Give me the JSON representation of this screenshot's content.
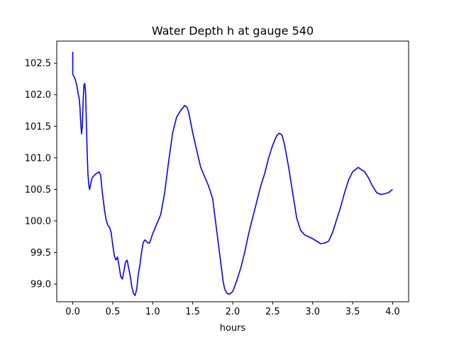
{
  "chart_data": {
    "type": "line",
    "title": "Water Depth h at gauge 540",
    "xlabel": "hours",
    "ylabel": "",
    "xlim": [
      -0.2,
      4.2
    ],
    "ylim": [
      98.72,
      102.85
    ],
    "xticks": [
      0.0,
      0.5,
      1.0,
      1.5,
      2.0,
      2.5,
      3.0,
      3.5,
      4.0
    ],
    "xtick_labels": [
      "0.0",
      "0.5",
      "1.0",
      "1.5",
      "2.0",
      "2.5",
      "3.0",
      "3.5",
      "4.0"
    ],
    "yticks": [
      99.0,
      99.5,
      100.0,
      100.5,
      101.0,
      101.5,
      102.0,
      102.5
    ],
    "ytick_labels": [
      "99.0",
      "99.5",
      "100.0",
      "100.5",
      "101.0",
      "101.5",
      "102.0",
      "102.5"
    ],
    "grid": false,
    "series": [
      {
        "color": "#0000ff",
        "x": [
          0.0,
          0.0,
          0.01,
          0.03,
          0.05,
          0.06,
          0.07,
          0.08,
          0.09,
          0.1,
          0.11,
          0.12,
          0.13,
          0.14,
          0.15,
          0.16,
          0.17,
          0.18,
          0.19,
          0.2,
          0.21,
          0.22,
          0.23,
          0.24,
          0.25,
          0.27,
          0.29,
          0.31,
          0.33,
          0.35,
          0.36,
          0.37,
          0.38,
          0.4,
          0.42,
          0.44,
          0.46,
          0.48,
          0.5,
          0.52,
          0.54,
          0.56,
          0.58,
          0.6,
          0.62,
          0.64,
          0.66,
          0.68,
          0.7,
          0.72,
          0.74,
          0.76,
          0.78,
          0.8,
          0.82,
          0.84,
          0.86,
          0.88,
          0.9,
          0.92,
          0.94,
          0.96,
          0.98,
          1.0,
          1.05,
          1.1,
          1.15,
          1.2,
          1.25,
          1.3,
          1.35,
          1.4,
          1.43,
          1.45,
          1.5,
          1.55,
          1.6,
          1.65,
          1.7,
          1.75,
          1.8,
          1.85,
          1.88,
          1.9,
          1.93,
          1.96,
          2.0,
          2.05,
          2.1,
          2.15,
          2.2,
          2.25,
          2.3,
          2.35,
          2.4,
          2.45,
          2.5,
          2.55,
          2.58,
          2.6,
          2.62,
          2.65,
          2.7,
          2.75,
          2.8,
          2.85,
          2.9,
          2.95,
          3.0,
          3.05,
          3.1,
          3.15,
          3.2,
          3.25,
          3.3,
          3.35,
          3.4,
          3.45,
          3.5,
          3.55,
          3.57,
          3.6,
          3.65,
          3.7,
          3.75,
          3.8,
          3.85,
          3.9,
          3.95,
          4.0
        ],
        "y": [
          102.68,
          102.33,
          102.3,
          102.25,
          102.15,
          102.08,
          102.0,
          101.95,
          101.8,
          101.55,
          101.38,
          101.5,
          101.9,
          102.15,
          102.18,
          102.05,
          101.6,
          101.1,
          100.75,
          100.58,
          100.5,
          100.55,
          100.62,
          100.67,
          100.7,
          100.72,
          100.75,
          100.76,
          100.78,
          100.72,
          100.58,
          100.45,
          100.35,
          100.15,
          100.0,
          99.93,
          99.9,
          99.82,
          99.62,
          99.45,
          99.38,
          99.43,
          99.28,
          99.12,
          99.08,
          99.2,
          99.35,
          99.38,
          99.25,
          99.12,
          98.95,
          98.85,
          98.82,
          98.92,
          99.15,
          99.3,
          99.5,
          99.65,
          99.7,
          99.68,
          99.65,
          99.65,
          99.72,
          99.8,
          99.95,
          100.1,
          100.45,
          100.95,
          101.4,
          101.65,
          101.75,
          101.83,
          101.8,
          101.72,
          101.4,
          101.12,
          100.85,
          100.7,
          100.55,
          100.35,
          99.85,
          99.35,
          99.05,
          98.92,
          98.85,
          98.84,
          98.88,
          99.05,
          99.25,
          99.5,
          99.8,
          100.05,
          100.3,
          100.55,
          100.75,
          101.0,
          101.2,
          101.35,
          101.39,
          101.38,
          101.35,
          101.2,
          100.85,
          100.45,
          100.05,
          99.85,
          99.78,
          99.75,
          99.72,
          99.68,
          99.64,
          99.65,
          99.68,
          99.82,
          100.02,
          100.22,
          100.45,
          100.65,
          100.78,
          100.83,
          100.85,
          100.82,
          100.78,
          100.68,
          100.55,
          100.45,
          100.42,
          100.43,
          100.45,
          100.5
        ]
      }
    ]
  }
}
